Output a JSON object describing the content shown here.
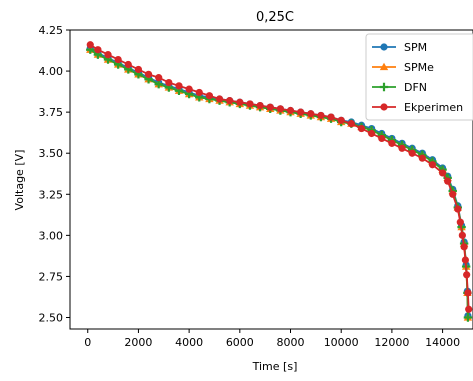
{
  "chart_data": {
    "type": "line",
    "title": "0,25C",
    "xlabel": "Time [s]",
    "ylabel": "Voltage [V]",
    "xlim": [
      -700,
      15200
    ],
    "ylim": [
      2.43,
      4.25
    ],
    "xticks": [
      0,
      2000,
      4000,
      6000,
      8000,
      10000,
      12000,
      14000
    ],
    "yticks": [
      2.5,
      2.75,
      3.0,
      3.25,
      3.5,
      3.75,
      4.0,
      4.25
    ],
    "xtick_labels": [
      "0",
      "2000",
      "4000",
      "6000",
      "8000",
      "10000",
      "12000",
      "14000"
    ],
    "ytick_labels": [
      "2.50",
      "2.75",
      "3.00",
      "3.25",
      "3.50",
      "3.75",
      "4.00",
      "4.25"
    ],
    "legend_position": "top-right",
    "grid": false,
    "series": [
      {
        "name": "SPM",
        "color": "#1f77b4",
        "marker": "circle",
        "x": [
          100,
          400,
          800,
          1200,
          1600,
          2000,
          2400,
          2800,
          3200,
          3600,
          4000,
          4400,
          4800,
          5200,
          5600,
          6000,
          6400,
          6800,
          7200,
          7600,
          8000,
          8400,
          8800,
          9200,
          9600,
          10000,
          10400,
          10800,
          11200,
          11600,
          12000,
          12400,
          12800,
          13200,
          13600,
          14000,
          14200,
          14400,
          14600,
          14750,
          14850,
          14930,
          14980,
          15000
        ],
        "y": [
          4.14,
          4.11,
          4.08,
          4.05,
          4.02,
          3.99,
          3.96,
          3.93,
          3.91,
          3.89,
          3.87,
          3.85,
          3.84,
          3.83,
          3.82,
          3.81,
          3.8,
          3.79,
          3.78,
          3.77,
          3.76,
          3.75,
          3.74,
          3.73,
          3.72,
          3.7,
          3.69,
          3.67,
          3.65,
          3.62,
          3.59,
          3.56,
          3.53,
          3.5,
          3.46,
          3.41,
          3.36,
          3.28,
          3.18,
          3.06,
          2.96,
          2.82,
          2.66,
          2.51
        ]
      },
      {
        "name": "SPMe",
        "color": "#ff7f0e",
        "marker": "triangle",
        "x": [
          100,
          400,
          800,
          1200,
          1600,
          2000,
          2400,
          2800,
          3200,
          3600,
          4000,
          4400,
          4800,
          5200,
          5600,
          6000,
          6400,
          6800,
          7200,
          7600,
          8000,
          8400,
          8800,
          9200,
          9600,
          10000,
          10400,
          10800,
          11200,
          11600,
          12000,
          12400,
          12800,
          13200,
          13600,
          14000,
          14200,
          14400,
          14600,
          14750,
          14850,
          14930,
          14980,
          15000
        ],
        "y": [
          4.13,
          4.1,
          4.07,
          4.04,
          4.01,
          3.98,
          3.95,
          3.92,
          3.9,
          3.88,
          3.86,
          3.84,
          3.83,
          3.82,
          3.81,
          3.8,
          3.79,
          3.78,
          3.77,
          3.76,
          3.75,
          3.74,
          3.73,
          3.72,
          3.71,
          3.69,
          3.68,
          3.66,
          3.64,
          3.61,
          3.58,
          3.55,
          3.52,
          3.49,
          3.45,
          3.4,
          3.35,
          3.27,
          3.17,
          3.05,
          2.95,
          2.81,
          2.65,
          2.5
        ]
      },
      {
        "name": "DFN",
        "color": "#2ca02c",
        "marker": "plus",
        "x": [
          100,
          400,
          800,
          1200,
          1600,
          2000,
          2400,
          2800,
          3200,
          3600,
          4000,
          4400,
          4800,
          5200,
          5600,
          6000,
          6400,
          6800,
          7200,
          7600,
          8000,
          8400,
          8800,
          9200,
          9600,
          10000,
          10400,
          10800,
          11200,
          11600,
          12000,
          12400,
          12800,
          13200,
          13600,
          14000,
          14200,
          14400,
          14600,
          14750,
          14850,
          14930,
          14980,
          15000
        ],
        "y": [
          4.13,
          4.1,
          4.07,
          4.04,
          4.01,
          3.98,
          3.95,
          3.92,
          3.9,
          3.88,
          3.86,
          3.84,
          3.83,
          3.82,
          3.81,
          3.8,
          3.79,
          3.78,
          3.77,
          3.76,
          3.75,
          3.74,
          3.73,
          3.72,
          3.71,
          3.69,
          3.68,
          3.66,
          3.64,
          3.61,
          3.58,
          3.55,
          3.52,
          3.49,
          3.45,
          3.4,
          3.35,
          3.27,
          3.17,
          3.05,
          2.95,
          2.81,
          2.65,
          2.5
        ]
      },
      {
        "name": "Ekperimen",
        "color": "#d62728",
        "marker": "circle",
        "x": [
          100,
          400,
          800,
          1200,
          1600,
          2000,
          2400,
          2800,
          3200,
          3600,
          4000,
          4400,
          4800,
          5200,
          5600,
          6000,
          6400,
          6800,
          7200,
          7600,
          8000,
          8400,
          8800,
          9200,
          9600,
          10000,
          10400,
          10800,
          11200,
          11600,
          12000,
          12400,
          12800,
          13200,
          13600,
          14000,
          14200,
          14400,
          14600,
          14700,
          14780,
          14850,
          14900,
          14950,
          15000,
          15030
        ],
        "y": [
          4.16,
          4.13,
          4.1,
          4.07,
          4.04,
          4.01,
          3.98,
          3.96,
          3.93,
          3.91,
          3.89,
          3.87,
          3.85,
          3.83,
          3.82,
          3.81,
          3.8,
          3.79,
          3.78,
          3.77,
          3.76,
          3.75,
          3.74,
          3.73,
          3.72,
          3.7,
          3.68,
          3.65,
          3.62,
          3.59,
          3.56,
          3.53,
          3.5,
          3.47,
          3.43,
          3.38,
          3.33,
          3.25,
          3.16,
          3.08,
          3.0,
          2.93,
          2.85,
          2.76,
          2.65,
          2.55
        ]
      }
    ]
  }
}
